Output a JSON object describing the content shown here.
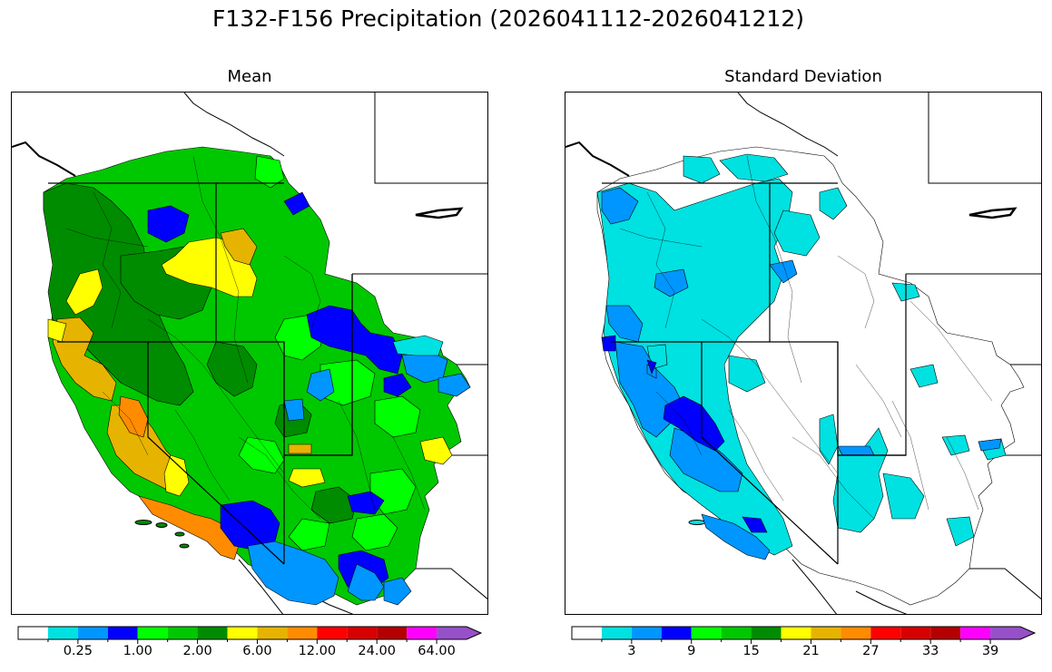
{
  "title": "F132-F156 Precipitation (2026041112-2026041212)",
  "panels": [
    {
      "subtitle": "Mean",
      "colorbar": {
        "colors": [
          "#ffffff",
          "#00e1e1",
          "#0096ff",
          "#0000ff",
          "#00ff00",
          "#00c800",
          "#008c00",
          "#ffff00",
          "#e6b400",
          "#ff8c00",
          "#ff0000",
          "#d70000",
          "#b40000",
          "#ff00ff",
          "#9650c8"
        ],
        "tick_labels": [
          "0.25",
          "1.00",
          "2.00",
          "6.00",
          "12.00",
          "24.00",
          "64.00"
        ],
        "label_bins": [
          2,
          4,
          6,
          8,
          10,
          12,
          14
        ]
      }
    },
    {
      "subtitle": "Standard Deviation",
      "colorbar": {
        "colors": [
          "#ffffff",
          "#00e1e1",
          "#0096ff",
          "#0000ff",
          "#00ff00",
          "#00c800",
          "#008c00",
          "#ffff00",
          "#e6b400",
          "#ff8c00",
          "#ff0000",
          "#d70000",
          "#b40000",
          "#ff00ff",
          "#9650c8"
        ],
        "tick_labels": [
          "3",
          "9",
          "15",
          "21",
          "27",
          "33",
          "39"
        ],
        "label_bins": [
          2,
          4,
          6,
          8,
          10,
          12,
          14
        ]
      }
    }
  ]
}
